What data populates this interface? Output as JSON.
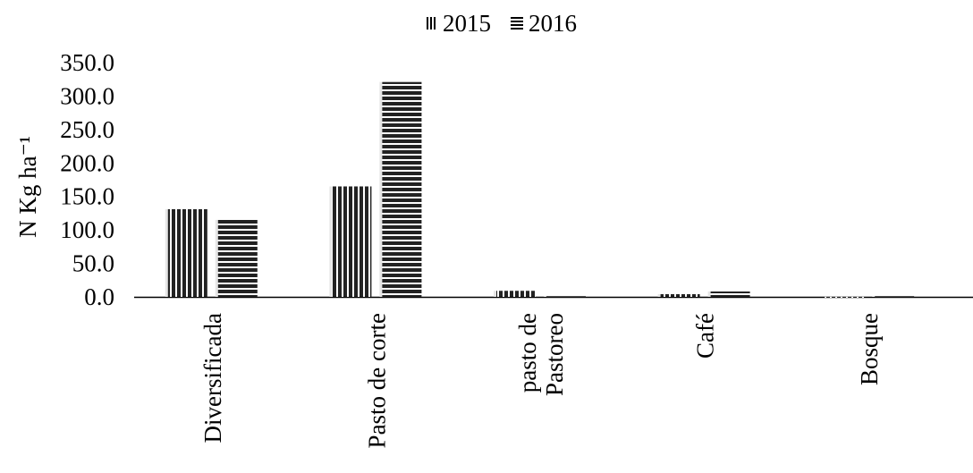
{
  "chart_data": {
    "type": "bar",
    "title": "",
    "xlabel": "",
    "ylabel": "N Kg ha⁻¹",
    "ylim": [
      0,
      350
    ],
    "yticks": [
      "0.0",
      "50.0",
      "100.0",
      "150.0",
      "200.0",
      "250.0",
      "300.0",
      "350.0"
    ],
    "categories": [
      [
        "Diversificada"
      ],
      [
        "Pasto de corte"
      ],
      [
        "pasto de",
        "Pastoreo"
      ],
      [
        "Café"
      ],
      [
        "Bosque"
      ]
    ],
    "series": [
      {
        "name": "2015",
        "values": [
          131,
          165,
          9,
          4,
          0
        ],
        "pattern": "vertical"
      },
      {
        "name": "2016",
        "values": [
          115,
          321,
          1,
          8,
          1
        ],
        "pattern": "horizontal"
      }
    ],
    "legend_position": "top",
    "grid": false,
    "colors": {
      "bar": "#222222",
      "bar_bg": "#e6e6e6"
    }
  }
}
